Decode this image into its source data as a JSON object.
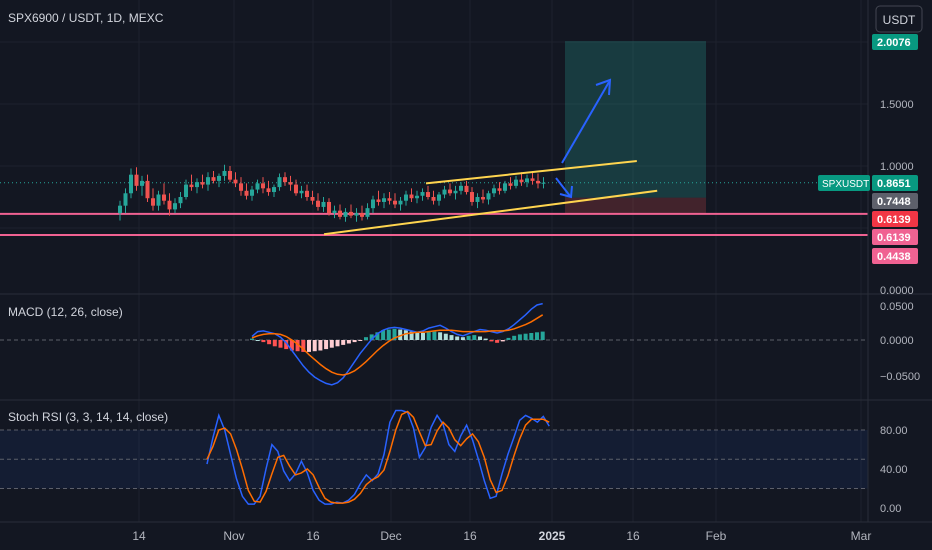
{
  "header": {
    "symbol_line": "SPX6900 / USDT, 1D, MEXC",
    "currency_button": "USDT"
  },
  "price_scale": {
    "ticks": [
      "2.0076",
      "1.5000",
      "1.0000",
      "0.0000"
    ],
    "tick_values": [
      2.0076,
      1.5,
      1.0,
      0.0
    ],
    "ticker_badge": "SPXUSDT",
    "last_price": "0.8651",
    "level_1": "0.7448",
    "level_2": "0.6139",
    "level_3": "0.6139",
    "level_4": "0.4438"
  },
  "macd": {
    "label": "MACD (12, 26, close)",
    "ticks": [
      "0.0500",
      "0.0000",
      "−0.0500"
    ]
  },
  "stoch_rsi": {
    "label": "Stoch RSI (3, 3, 14, 14, close)",
    "ticks": [
      "80.00",
      "40.00",
      "0.00"
    ]
  },
  "time_axis": {
    "labels": [
      "14",
      "Nov",
      "16",
      "Dec",
      "16",
      "2025",
      "16",
      "Feb",
      "Mar"
    ]
  },
  "colors": {
    "background": "#131722",
    "up": "#26a69a",
    "down": "#ef5350",
    "support": "#f06292",
    "channel": "#ffd54f",
    "arrow": "#2962ff",
    "macd_line": "#2962ff",
    "signal_line": "#ff6d00",
    "target": "#0e4a41"
  },
  "chart_data": {
    "type": "candlestick",
    "price_ylim": [
      0,
      2.25
    ],
    "candles_ohlc": [
      [
        0.62,
        0.72,
        0.56,
        0.68
      ],
      [
        0.68,
        0.82,
        0.62,
        0.78
      ],
      [
        0.78,
        0.98,
        0.74,
        0.93
      ],
      [
        0.93,
        0.99,
        0.8,
        0.84
      ],
      [
        0.84,
        0.92,
        0.76,
        0.88
      ],
      [
        0.88,
        0.93,
        0.71,
        0.74
      ],
      [
        0.74,
        0.82,
        0.64,
        0.68
      ],
      [
        0.68,
        0.8,
        0.64,
        0.77
      ],
      [
        0.77,
        0.86,
        0.69,
        0.72
      ],
      [
        0.72,
        0.78,
        0.6,
        0.65
      ],
      [
        0.65,
        0.74,
        0.62,
        0.7
      ],
      [
        0.7,
        0.79,
        0.66,
        0.75
      ],
      [
        0.75,
        0.89,
        0.73,
        0.85
      ],
      [
        0.85,
        0.93,
        0.8,
        0.83
      ],
      [
        0.83,
        0.9,
        0.78,
        0.87
      ],
      [
        0.87,
        0.93,
        0.82,
        0.85
      ],
      [
        0.85,
        0.95,
        0.8,
        0.91
      ],
      [
        0.91,
        0.96,
        0.86,
        0.88
      ],
      [
        0.88,
        0.94,
        0.83,
        0.92
      ],
      [
        0.92,
        1.01,
        0.88,
        0.96
      ],
      [
        0.96,
        1.0,
        0.87,
        0.89
      ],
      [
        0.89,
        0.95,
        0.83,
        0.86
      ],
      [
        0.86,
        0.91,
        0.76,
        0.8
      ],
      [
        0.8,
        0.86,
        0.73,
        0.76
      ],
      [
        0.76,
        0.84,
        0.72,
        0.81
      ],
      [
        0.81,
        0.89,
        0.78,
        0.86
      ],
      [
        0.86,
        0.91,
        0.78,
        0.82
      ],
      [
        0.82,
        0.88,
        0.76,
        0.79
      ],
      [
        0.79,
        0.85,
        0.75,
        0.83
      ],
      [
        0.83,
        0.94,
        0.8,
        0.91
      ],
      [
        0.91,
        0.95,
        0.84,
        0.87
      ],
      [
        0.87,
        0.92,
        0.8,
        0.85
      ],
      [
        0.85,
        0.89,
        0.76,
        0.78
      ],
      [
        0.78,
        0.84,
        0.74,
        0.8
      ],
      [
        0.8,
        0.85,
        0.72,
        0.75
      ],
      [
        0.75,
        0.8,
        0.69,
        0.72
      ],
      [
        0.72,
        0.78,
        0.64,
        0.67
      ],
      [
        0.67,
        0.75,
        0.63,
        0.71
      ],
      [
        0.71,
        0.74,
        0.6,
        0.62
      ],
      [
        0.62,
        0.68,
        0.58,
        0.64
      ],
      [
        0.64,
        0.69,
        0.57,
        0.59
      ],
      [
        0.59,
        0.66,
        0.55,
        0.63
      ],
      [
        0.63,
        0.69,
        0.58,
        0.6
      ],
      [
        0.6,
        0.66,
        0.55,
        0.62
      ],
      [
        0.62,
        0.68,
        0.56,
        0.59
      ],
      [
        0.59,
        0.7,
        0.57,
        0.66
      ],
      [
        0.66,
        0.76,
        0.62,
        0.73
      ],
      [
        0.73,
        0.8,
        0.68,
        0.71
      ],
      [
        0.71,
        0.78,
        0.66,
        0.74
      ],
      [
        0.74,
        0.79,
        0.69,
        0.72
      ],
      [
        0.72,
        0.78,
        0.66,
        0.69
      ],
      [
        0.69,
        0.75,
        0.64,
        0.72
      ],
      [
        0.72,
        0.8,
        0.68,
        0.77
      ],
      [
        0.77,
        0.82,
        0.71,
        0.74
      ],
      [
        0.74,
        0.8,
        0.7,
        0.76
      ],
      [
        0.76,
        0.82,
        0.72,
        0.79
      ],
      [
        0.79,
        0.84,
        0.73,
        0.75
      ],
      [
        0.75,
        0.8,
        0.69,
        0.72
      ],
      [
        0.72,
        0.79,
        0.68,
        0.77
      ],
      [
        0.77,
        0.84,
        0.74,
        0.81
      ],
      [
        0.81,
        0.86,
        0.76,
        0.78
      ],
      [
        0.78,
        0.84,
        0.73,
        0.8
      ],
      [
        0.8,
        0.87,
        0.77,
        0.84
      ],
      [
        0.84,
        0.88,
        0.77,
        0.79
      ],
      [
        0.79,
        0.83,
        0.68,
        0.71
      ],
      [
        0.71,
        0.78,
        0.66,
        0.75
      ],
      [
        0.75,
        0.81,
        0.7,
        0.73
      ],
      [
        0.73,
        0.8,
        0.69,
        0.78
      ],
      [
        0.78,
        0.85,
        0.75,
        0.82
      ],
      [
        0.82,
        0.87,
        0.77,
        0.8
      ],
      [
        0.8,
        0.88,
        0.78,
        0.86
      ],
      [
        0.86,
        0.91,
        0.81,
        0.84
      ],
      [
        0.84,
        0.92,
        0.82,
        0.89
      ],
      [
        0.89,
        0.95,
        0.84,
        0.87
      ],
      [
        0.87,
        0.93,
        0.83,
        0.9
      ],
      [
        0.9,
        0.96,
        0.85,
        0.88
      ],
      [
        0.88,
        0.94,
        0.82,
        0.86
      ],
      [
        0.86,
        0.91,
        0.82,
        0.8651
      ]
    ],
    "horizontal_levels": [
      0.6139,
      0.4438
    ],
    "channel_upper": [
      [
        0.9,
        0.86
      ],
      [
        1.52,
        1.04
      ]
    ],
    "channel_lower": [
      [
        0.6,
        0.45
      ],
      [
        1.58,
        0.8
      ]
    ],
    "target_zone": {
      "from": 0.7448,
      "to": 2.0076
    },
    "stop_zone": {
      "from": 0.6139,
      "to": 0.7448
    },
    "macd_ylim": [
      -0.08,
      0.065
    ],
    "macd_hist": [
      0.002,
      0.0,
      -0.003,
      -0.006,
      -0.009,
      -0.011,
      -0.013,
      -0.015,
      -0.016,
      -0.017,
      -0.017,
      -0.016,
      -0.015,
      -0.013,
      -0.011,
      -0.009,
      -0.007,
      -0.005,
      -0.003,
      -0.001,
      0.004,
      0.008,
      0.011,
      0.014,
      0.015,
      0.016,
      0.015,
      0.014,
      0.012,
      0.011,
      0.01,
      0.012,
      0.012,
      0.011,
      0.009,
      0.007,
      0.005,
      0.004,
      0.006,
      0.007,
      0.005,
      0.002,
      -0.002,
      -0.004,
      -0.002,
      0.003,
      0.006,
      0.008,
      0.009,
      0.01,
      0.011,
      0.012
    ],
    "macd_line": [
      0.005,
      0.012,
      0.013,
      0.011,
      0.009,
      0.004,
      -0.004,
      -0.015,
      -0.026,
      -0.037,
      -0.046,
      -0.053,
      -0.058,
      -0.062,
      -0.064,
      -0.061,
      -0.054,
      -0.043,
      -0.031,
      -0.019,
      -0.009,
      0.001,
      0.009,
      0.014,
      0.017,
      0.018,
      0.017,
      0.015,
      0.013,
      0.011,
      0.013,
      0.017,
      0.019,
      0.021,
      0.017,
      0.012,
      0.008,
      0.006,
      0.009,
      0.012,
      0.015,
      0.014,
      0.012,
      0.01,
      0.012,
      0.016,
      0.022,
      0.029,
      0.036,
      0.044,
      0.05,
      0.052
    ],
    "signal_line": [
      0.003,
      0.006,
      0.008,
      0.009,
      0.009,
      0.008,
      0.005,
      0.0,
      -0.006,
      -0.013,
      -0.021,
      -0.028,
      -0.035,
      -0.041,
      -0.046,
      -0.049,
      -0.05,
      -0.048,
      -0.044,
      -0.038,
      -0.031,
      -0.023,
      -0.015,
      -0.008,
      -0.002,
      0.003,
      0.006,
      0.009,
      0.01,
      0.011,
      0.011,
      0.012,
      0.013,
      0.014,
      0.014,
      0.014,
      0.013,
      0.012,
      0.012,
      0.012,
      0.012,
      0.012,
      0.013,
      0.013,
      0.013,
      0.014,
      0.016,
      0.019,
      0.022,
      0.026,
      0.031,
      0.036
    ],
    "stoch_ylim": [
      -10,
      112
    ],
    "stoch_k": [
      45,
      72,
      95,
      80,
      55,
      30,
      12,
      4,
      4,
      12,
      40,
      65,
      58,
      38,
      28,
      35,
      48,
      36,
      18,
      8,
      4,
      4,
      6,
      5,
      8,
      14,
      25,
      34,
      28,
      35,
      55,
      88,
      100,
      100,
      98,
      82,
      52,
      62,
      83,
      95,
      86,
      65,
      58,
      74,
      85,
      70,
      50,
      28,
      10,
      12,
      35,
      55,
      72,
      90,
      95,
      92,
      88,
      94,
      84
    ],
    "stoch_d": [
      50,
      63,
      80,
      82,
      76,
      60,
      40,
      18,
      7,
      6,
      17,
      35,
      52,
      54,
      43,
      34,
      36,
      40,
      34,
      21,
      10,
      6,
      5,
      5,
      6,
      9,
      15,
      24,
      29,
      32,
      39,
      58,
      80,
      96,
      99,
      93,
      78,
      64,
      65,
      79,
      88,
      82,
      70,
      64,
      71,
      76,
      68,
      52,
      29,
      16,
      18,
      33,
      53,
      71,
      85,
      91,
      91,
      91,
      88
    ]
  }
}
